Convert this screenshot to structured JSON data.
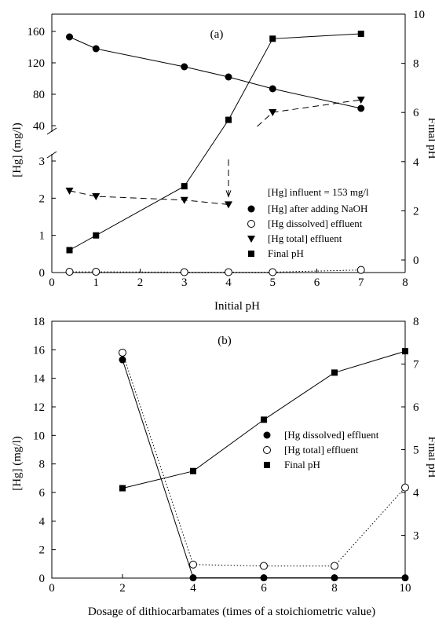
{
  "chart_data": [
    {
      "type": "line",
      "panel_label": "(a)",
      "xlabel": "Initial pH",
      "ylabel_left": "[Hg] (mg/l)",
      "ylabel_right": "Final pH",
      "xlim": [
        0,
        8
      ],
      "x_ticks": [
        0,
        1,
        2,
        3,
        4,
        5,
        6,
        7,
        8
      ],
      "y_left_axis": "broken",
      "y_left_lower_range": [
        0,
        3
      ],
      "y_left_lower_ticks": [
        0,
        1,
        2,
        3
      ],
      "y_left_upper_range": [
        40,
        160
      ],
      "y_left_upper_ticks": [
        40,
        80,
        120,
        160
      ],
      "y_right_range": [
        0,
        10
      ],
      "y_right_ticks": [
        0,
        2,
        4,
        6,
        8,
        10
      ],
      "annotation": "[Hg] influent = 153 mg/l",
      "legend_position": "right",
      "grid": false,
      "series": [
        {
          "name": "[Hg] after adding NaOH",
          "marker": "filled-circle",
          "line": "solid",
          "axis": "left",
          "x": [
            0.4,
            1,
            3,
            4,
            5,
            7
          ],
          "y": [
            153,
            138,
            115,
            102,
            87,
            62
          ]
        },
        {
          "name": "[Hg dissolved] effluent",
          "marker": "open-circle",
          "line": "dotted",
          "axis": "left",
          "x": [
            0.4,
            1,
            3,
            4,
            5,
            7
          ],
          "y": [
            0.02,
            0.02,
            0.01,
            0.01,
            0.01,
            0.07
          ]
        },
        {
          "name": "[Hg total] effluent",
          "marker": "down-triangle",
          "line": "dashed",
          "axis": "left",
          "x": [
            0.4,
            1,
            3,
            4,
            5,
            7
          ],
          "y": [
            2.2,
            2.05,
            1.95,
            1.83,
            57,
            73
          ]
        },
        {
          "name": "Final pH",
          "marker": "filled-square",
          "line": "solid",
          "axis": "right",
          "x": [
            0.4,
            1,
            3,
            4,
            5,
            7
          ],
          "y": [
            0.4,
            1.0,
            3.0,
            5.7,
            9.0,
            9.2
          ]
        }
      ]
    },
    {
      "type": "line",
      "panel_label": "(b)",
      "xlabel": "Dosage of dithiocarbamates (times of a stoichiometric value)",
      "ylabel_left": "[Hg] (mg/l)",
      "ylabel_right": "Final pH",
      "xlim": [
        0,
        10
      ],
      "x_ticks": [
        0,
        2,
        4,
        6,
        8,
        10
      ],
      "ylim_left": [
        0,
        18
      ],
      "y_left_ticks": [
        0,
        2,
        4,
        6,
        8,
        10,
        12,
        14,
        16,
        18
      ],
      "ylim_right": [
        2.0,
        8
      ],
      "y_right_ticks": [
        3,
        4,
        5,
        6,
        7,
        8
      ],
      "legend_position": "right",
      "grid": false,
      "series": [
        {
          "name": "[Hg dissolved] effluent",
          "marker": "filled-circle",
          "line": "solid",
          "axis": "left",
          "x": [
            2,
            4,
            6,
            8,
            10
          ],
          "y": [
            15.3,
            0.02,
            0.02,
            0.02,
            0.02
          ]
        },
        {
          "name": "[Hg total] effluent",
          "marker": "open-circle",
          "line": "dotted",
          "axis": "left",
          "x": [
            2,
            4,
            6,
            8,
            10
          ],
          "y": [
            15.8,
            0.95,
            0.85,
            0.85,
            6.35
          ]
        },
        {
          "name": "Final pH",
          "marker": "filled-square",
          "line": "solid",
          "axis": "right",
          "x": [
            2,
            4,
            6,
            8,
            10
          ],
          "y": [
            4.1,
            4.5,
            5.7,
            6.8,
            7.3
          ]
        }
      ]
    }
  ]
}
